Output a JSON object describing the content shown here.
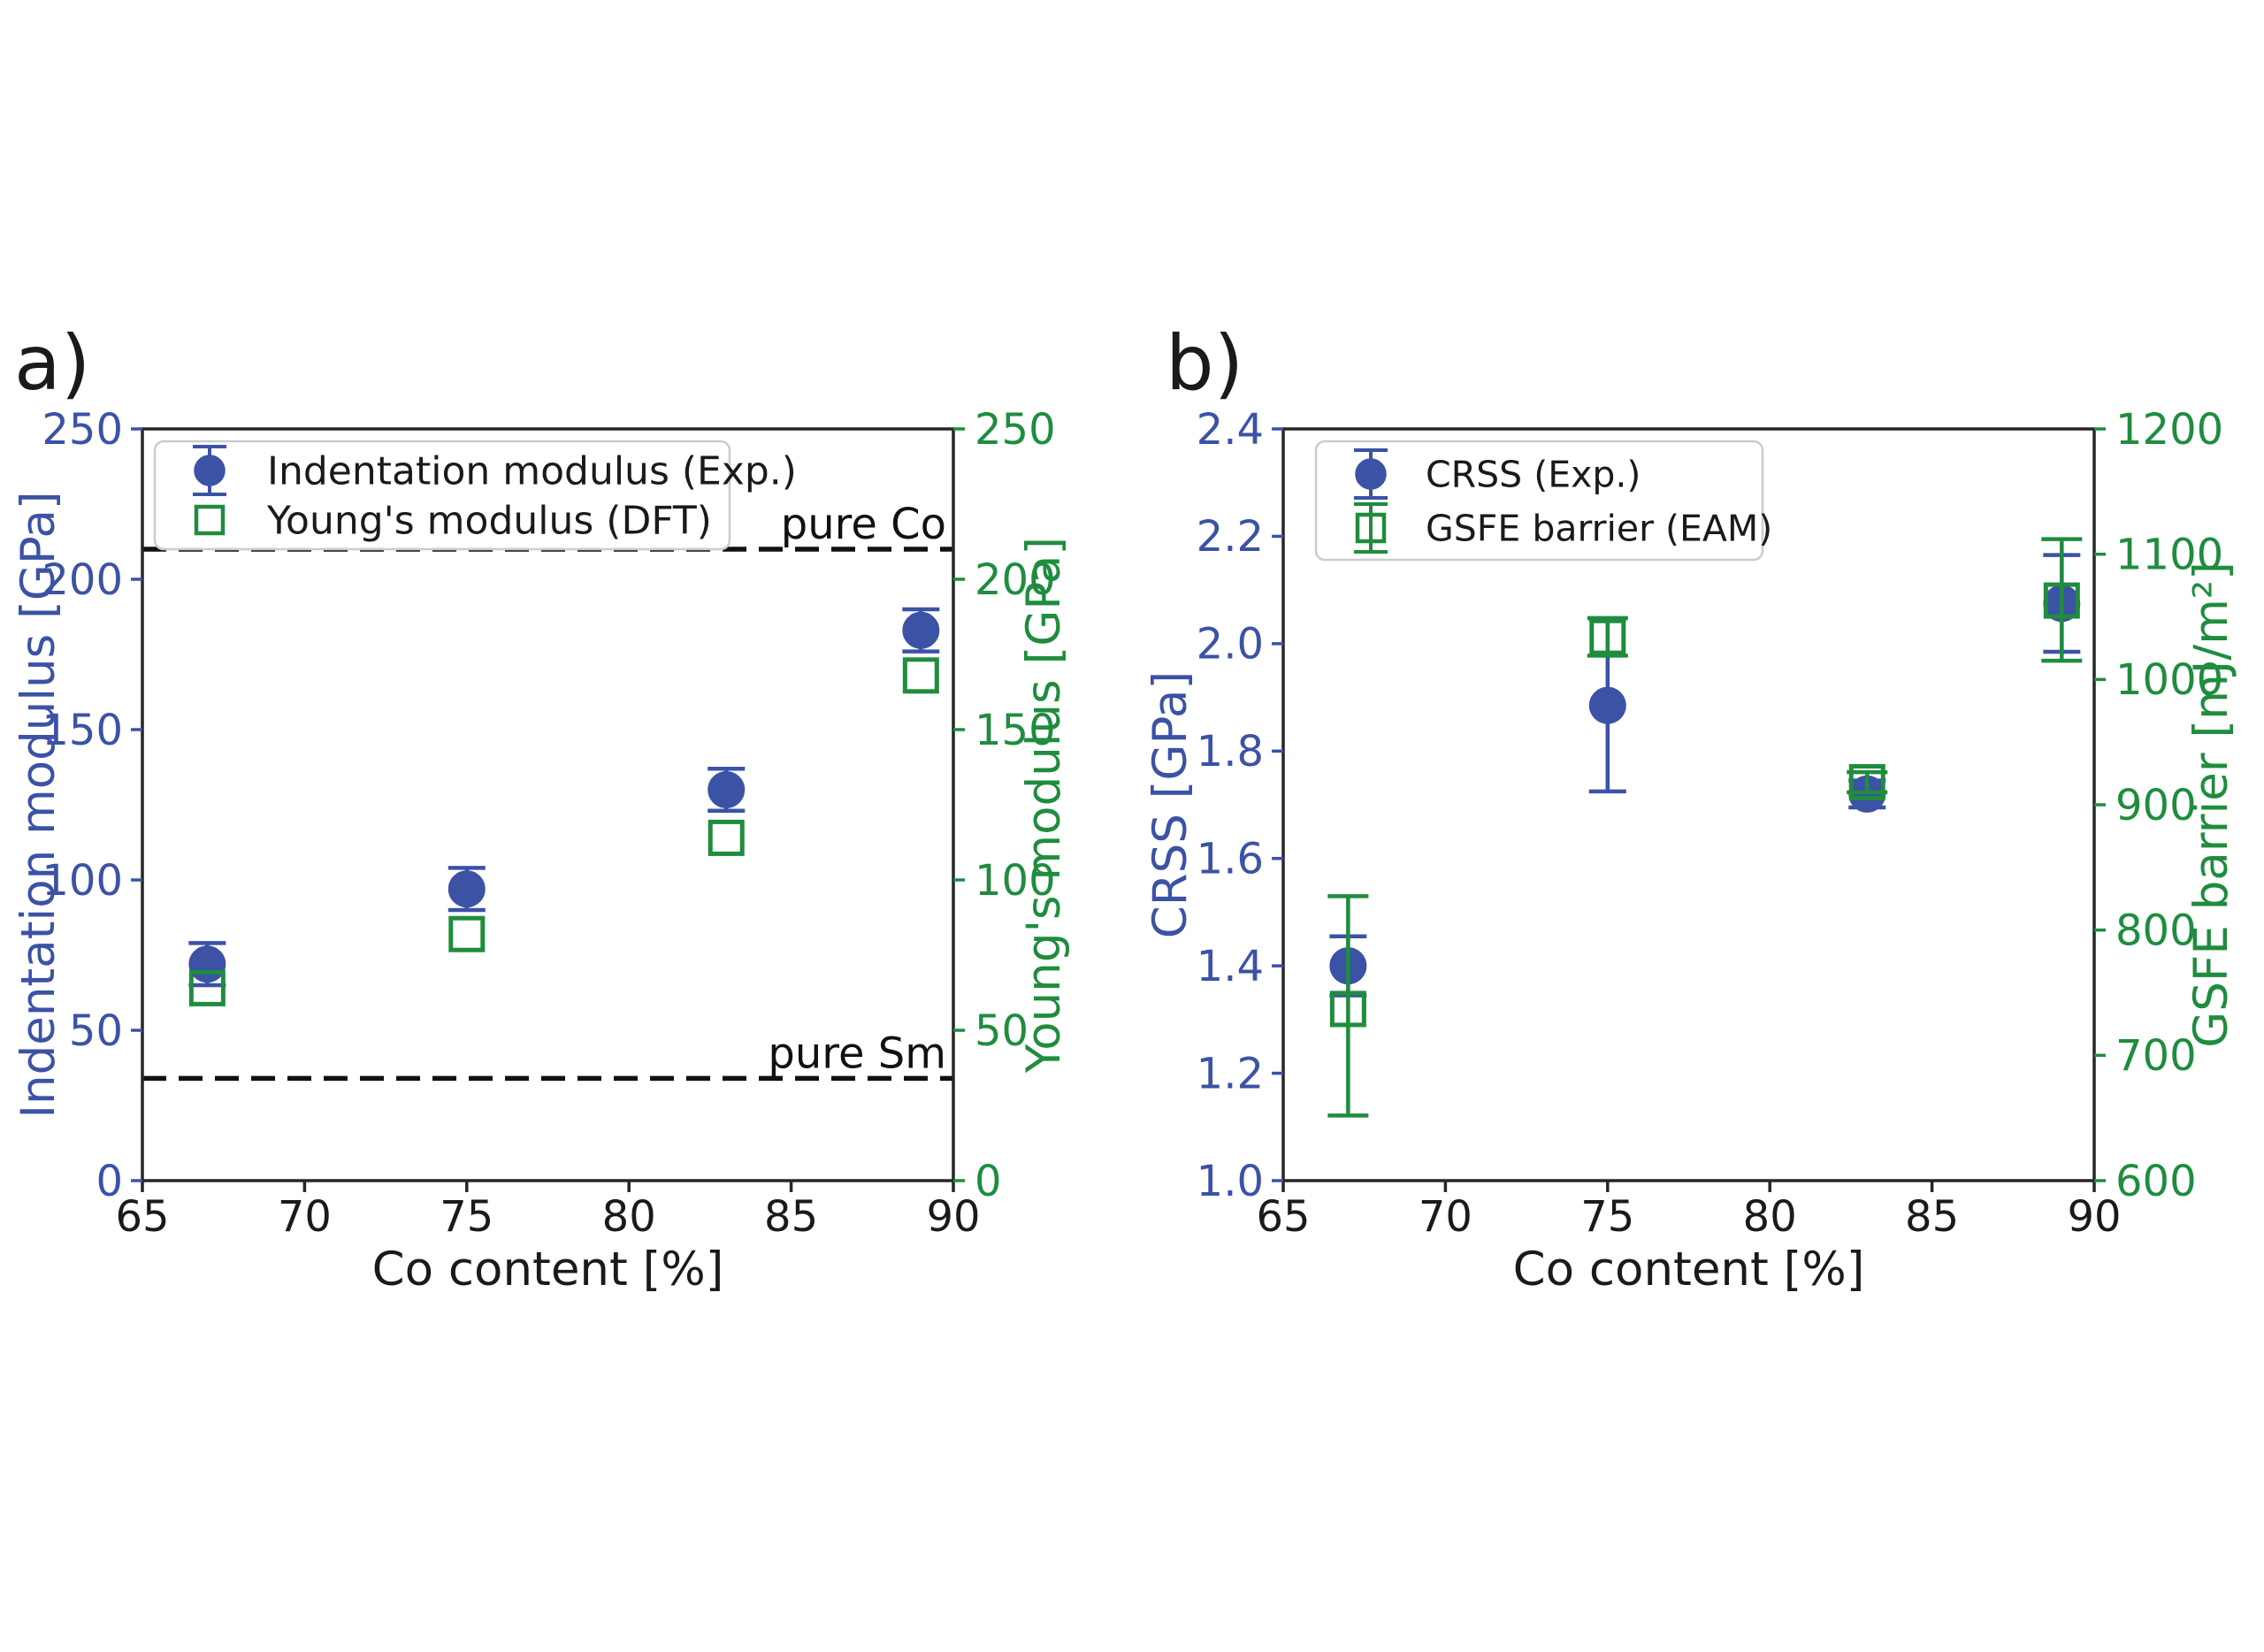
{
  "figure": {
    "background": "#ffffff",
    "panel_a_label": "a)",
    "panel_b_label": "b)"
  },
  "colors": {
    "blue": "#3b52a5",
    "green": "#1f8c3e",
    "frame": "#262626",
    "reference_line": "#111111",
    "legend_border": "#cccccc",
    "text": "#1a1a1a"
  },
  "chart_data": [
    {
      "id": "a",
      "type": "scatter",
      "panel_label": "a)",
      "xlabel": "Co content [%]",
      "xlim": [
        65,
        90
      ],
      "xticks": [
        65,
        70,
        75,
        80,
        85,
        90
      ],
      "xtick_labels": [
        "65",
        "70",
        "75",
        "80",
        "85",
        "90"
      ],
      "grid": false,
      "legend_position": "upper left",
      "left_axis": {
        "label": "Indentation modulus [GPa]",
        "color": "#3b52a5",
        "lim": [
          0,
          250
        ],
        "ticks": [
          0,
          50,
          100,
          150,
          200,
          250
        ],
        "tick_labels": [
          "0",
          "50",
          "100",
          "150",
          "200",
          "250"
        ]
      },
      "right_axis": {
        "label": "Young's modulus [GPa]",
        "color": "#1f8c3e",
        "lim": [
          0,
          250
        ],
        "ticks": [
          0,
          50,
          100,
          150,
          200,
          250
        ],
        "tick_labels": [
          "0",
          "50",
          "100",
          "150",
          "200",
          "250"
        ]
      },
      "reference_lines": [
        {
          "label": "pure Co",
          "value": 210,
          "style": "dashed",
          "color": "#111111"
        },
        {
          "label": "pure Sm",
          "value": 34,
          "style": "dashed",
          "color": "#111111"
        }
      ],
      "series": [
        {
          "name": "Indentation modulus (Exp.)",
          "axis": "left",
          "marker": "circle",
          "filled": true,
          "color": "#3b52a5",
          "x": [
            67,
            75,
            83,
            89
          ],
          "y": [
            72,
            97,
            130,
            183
          ],
          "yerr_plus": [
            7,
            7,
            7,
            7
          ],
          "yerr_minus": [
            7,
            7,
            7,
            7
          ]
        },
        {
          "name": "Young's modulus (DFT)",
          "axis": "right",
          "marker": "square",
          "filled": false,
          "color": "#1f8c3e",
          "x": [
            67,
            75,
            83,
            89
          ],
          "y": [
            64,
            82,
            114,
            168
          ]
        }
      ]
    },
    {
      "id": "b",
      "type": "scatter",
      "panel_label": "b)",
      "xlabel": "Co content [%]",
      "xlim": [
        65,
        90
      ],
      "xticks": [
        65,
        70,
        75,
        80,
        85,
        90
      ],
      "xtick_labels": [
        "65",
        "70",
        "75",
        "80",
        "85",
        "90"
      ],
      "grid": false,
      "legend_position": "upper left",
      "left_axis": {
        "label": "CRSS [GPa]",
        "color": "#3b52a5",
        "lim": [
          1.0,
          2.4
        ],
        "ticks": [
          1.0,
          1.2,
          1.4,
          1.6,
          1.8,
          2.0,
          2.2,
          2.4
        ],
        "tick_labels": [
          "1.0",
          "1.2",
          "1.4",
          "1.6",
          "1.8",
          "2.0",
          "2.2",
          "2.4"
        ]
      },
      "right_axis": {
        "label": "GSFE barrier [mJ/m²]",
        "color": "#1f8c3e",
        "lim": [
          600,
          1200
        ],
        "ticks": [
          600,
          700,
          800,
          900,
          1000,
          1100,
          1200
        ],
        "tick_labels": [
          "600",
          "700",
          "800",
          "900",
          "1000",
          "1100",
          "1200"
        ]
      },
      "reference_lines": [],
      "series": [
        {
          "name": "CRSS (Exp.)",
          "axis": "left",
          "marker": "circle",
          "filled": true,
          "color": "#3b52a5",
          "x": [
            67,
            75,
            83,
            89
          ],
          "y": [
            1.4,
            1.885,
            1.72,
            2.075
          ],
          "yerr_plus": [
            0.055,
            0.16,
            0.025,
            0.09
          ],
          "yerr_minus": [
            0.055,
            0.16,
            0.025,
            0.09
          ]
        },
        {
          "name": "GSFE barrier (EAM)",
          "axis": "right",
          "marker": "square",
          "filled": false,
          "color": "#1f8c3e",
          "x": [
            67,
            75,
            83,
            89
          ],
          "y": [
            737,
            1034,
            918,
            1063
          ],
          "yerr_plus": [
            90,
            15,
            8,
            49
          ],
          "yerr_minus": [
            85,
            15,
            8,
            48
          ]
        }
      ]
    }
  ]
}
